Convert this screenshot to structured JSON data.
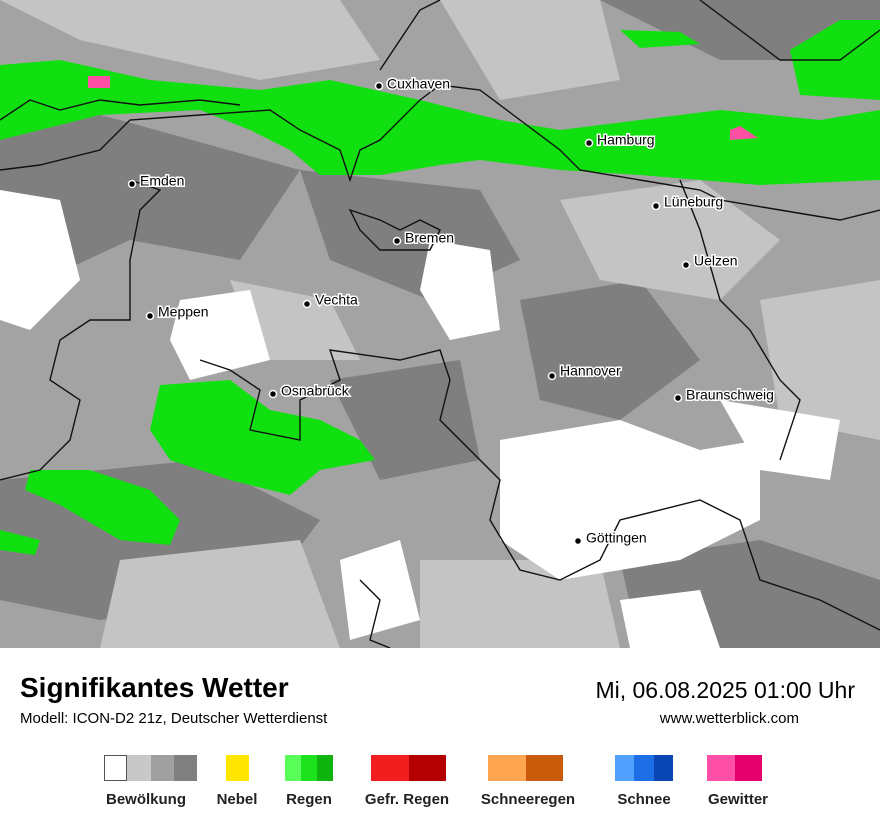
{
  "map": {
    "cities": [
      {
        "name": "Cuxhaven"
      },
      {
        "name": "Hamburg"
      },
      {
        "name": "Emden"
      },
      {
        "name": "Lüneburg"
      },
      {
        "name": "Bremen"
      },
      {
        "name": "Uelzen"
      },
      {
        "name": "Vechta"
      },
      {
        "name": "Meppen"
      },
      {
        "name": "Hannover"
      },
      {
        "name": "Osnabrück"
      },
      {
        "name": "Braunschweig"
      },
      {
        "name": "Göttingen"
      }
    ]
  },
  "header": {
    "title": "Signifikantes Wetter",
    "model": "Modell: ICON-D2 21z, Deutscher Wetterdienst",
    "datetime": "Mi, 06.08.2025 01:00 Uhr",
    "website": "www.wetterblick.com"
  },
  "legend": {
    "items": [
      {
        "label": "Bewölkung",
        "colors": [
          "#ffffff",
          "#c8c8c8",
          "#a0a0a0",
          "#808080"
        ]
      },
      {
        "label": "Nebel",
        "colors": [
          "#ffe600"
        ]
      },
      {
        "label": "Regen",
        "colors": [
          "#5aff5a",
          "#1ee11e",
          "#0fb40f"
        ]
      },
      {
        "label": "Gefr. Regen",
        "colors": [
          "#f01e1e",
          "#b40000"
        ]
      },
      {
        "label": "Schneeregen",
        "colors": [
          "#ffa550",
          "#c85a0a"
        ]
      },
      {
        "label": "Schnee",
        "colors": [
          "#50a0ff",
          "#1e6ee6",
          "#0a46b4"
        ]
      },
      {
        "label": "Gewitter",
        "colors": [
          "#ff50a5",
          "#e6006e"
        ]
      }
    ]
  }
}
